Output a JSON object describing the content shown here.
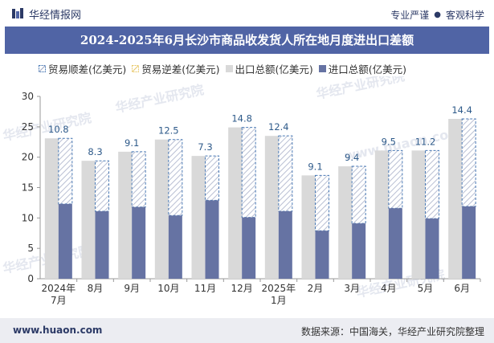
{
  "header": {
    "brand": "华经情报网",
    "tagline_a": "专业严谨",
    "tagline_sep": "●",
    "tagline_b": "客观科学"
  },
  "title": "2024-2025年6月长沙市商品收发货人所在地月度进出口差额",
  "footer": {
    "website": "www.huaon.com",
    "source": "数据来源：中国海关，华经产业研究院整理"
  },
  "watermarks": [
    "华经产业研究院",
    "www.huaon.com"
  ],
  "colors": {
    "title_bg": "#5064a5",
    "export_total": "#d9d9d9",
    "import_total": "#6673a3",
    "surplus_stroke": "#4a7ab5",
    "deficit_stroke": "#e8c86a",
    "label": "#2e5a8a"
  },
  "chart_data": {
    "type": "bar",
    "categories": [
      "2024年\n7月",
      "8月",
      "9月",
      "10月",
      "11月",
      "12月",
      "2025年\n1月",
      "2月",
      "3月",
      "4月",
      "5月",
      "6月"
    ],
    "ylim": [
      0,
      30
    ],
    "yticks": [
      0,
      5,
      10,
      15,
      20,
      25,
      30
    ],
    "series": [
      {
        "name": "贸易顺差(亿美元)",
        "values": [
          10.8,
          8.3,
          9.1,
          12.5,
          7.3,
          14.8,
          12.4,
          9.1,
          9.4,
          9.5,
          11.2,
          14.4
        ]
      },
      {
        "name": "贸易逆差(亿美元)",
        "values": [
          0,
          0,
          0,
          0,
          0,
          0,
          0,
          0,
          0,
          0,
          0,
          0
        ]
      },
      {
        "name": "出口总额(亿美元)",
        "values": [
          23.1,
          19.4,
          20.9,
          22.9,
          20.2,
          24.9,
          23.5,
          17.0,
          18.5,
          21.1,
          21.1,
          26.3
        ]
      },
      {
        "name": "进口总额(亿美元)",
        "values": [
          12.3,
          11.1,
          11.8,
          10.4,
          12.9,
          10.1,
          11.1,
          7.9,
          9.1,
          11.6,
          9.9,
          11.9
        ]
      }
    ]
  }
}
